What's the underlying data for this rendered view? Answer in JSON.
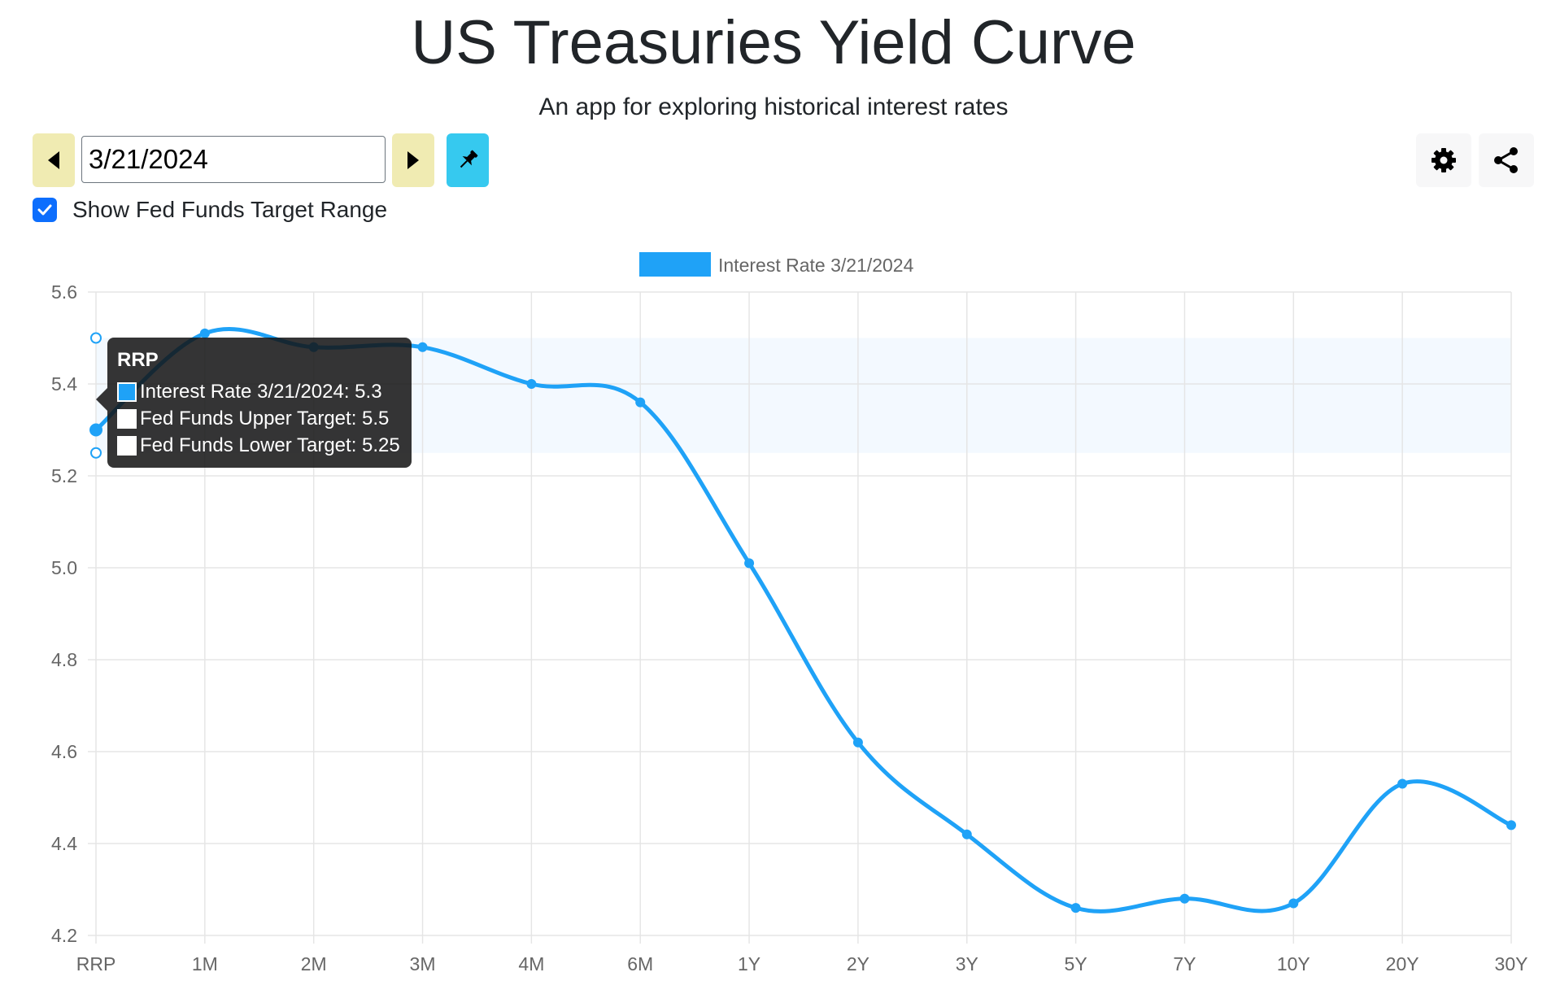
{
  "header": {
    "title": "US Treasuries Yield Curve",
    "subtitle": "An app for exploring historical interest rates"
  },
  "controls": {
    "date_value": "3/21/2024",
    "prev_icon": "caret-left-icon",
    "next_icon": "caret-right-icon",
    "pin_icon": "pin-icon",
    "settings_icon": "gear-icon",
    "share_icon": "share-icon",
    "show_fed_funds_label": "Show Fed Funds Target Range",
    "show_fed_funds_checked": true
  },
  "colors": {
    "series": "#1fa2f7",
    "band": "#f3f9ff",
    "nav_button": "#f0ebb2",
    "pin_button": "#36c9ef",
    "checkbox": "#0d6efd"
  },
  "tooltip": {
    "title": "RRP",
    "items": [
      "Interest Rate 3/21/2024: 5.3",
      "Fed Funds Upper Target: 5.5",
      "Fed Funds Lower Target: 5.25"
    ]
  },
  "chart_data": {
    "type": "line",
    "legend": [
      "Interest Rate 3/21/2024"
    ],
    "legend_position": "top-center",
    "categories": [
      "RRP",
      "1M",
      "2M",
      "3M",
      "4M",
      "6M",
      "1Y",
      "2Y",
      "3Y",
      "5Y",
      "7Y",
      "10Y",
      "20Y",
      "30Y"
    ],
    "series": [
      {
        "name": "Interest Rate 3/21/2024",
        "values": [
          5.3,
          5.51,
          5.48,
          5.48,
          5.4,
          5.36,
          5.01,
          4.62,
          4.42,
          4.26,
          4.28,
          4.27,
          4.53,
          4.44
        ]
      }
    ],
    "fed_funds_upper": 5.5,
    "fed_funds_lower": 5.25,
    "ylim": [
      4.2,
      5.6
    ],
    "yticks": [
      "4.2",
      "4.4",
      "4.6",
      "4.8",
      "5.0",
      "5.2",
      "5.4",
      "5.6"
    ],
    "grid": true,
    "xlabel": "",
    "ylabel": ""
  }
}
